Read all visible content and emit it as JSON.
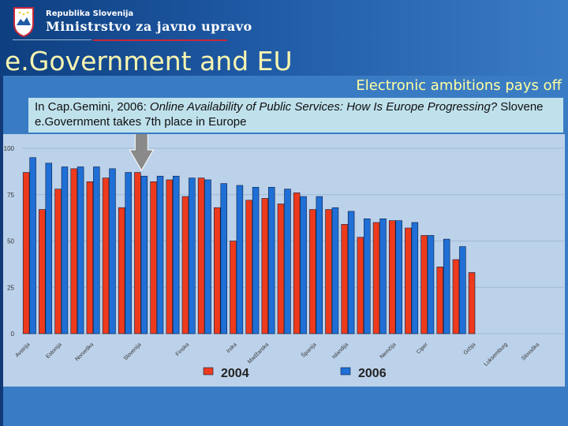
{
  "header": {
    "republika": "Republika Slovenija",
    "ministry": "Ministrstvo za javno upravo"
  },
  "slide": {
    "title": "e.Government and EU",
    "subtitle": "Electronic ambitions pays off",
    "caption_prefix": "In Cap.Gemini, 2006: ",
    "caption_italic": "Online Availability of Public Services: How Is Europe Progressing?",
    "caption_suffix": "  Slovene e.Government takes 7th place in Europe"
  },
  "colors": {
    "bar2004": "#ee3a1c",
    "bar2006": "#1f6fd6",
    "plot_bg": "#bcd2ea",
    "highlight_arrow": "#8a8a8a"
  },
  "chart_data": {
    "type": "bar",
    "ylim": [
      0,
      100
    ],
    "yticks": [
      0,
      25,
      50,
      75,
      100
    ],
    "categories": [
      "Avstrija",
      "",
      "Estonija",
      "",
      "Norveška",
      "",
      "",
      "Slovenija",
      "",
      "",
      "Finska",
      "",
      "",
      "Irska",
      "",
      "Madžarska",
      "",
      "",
      "Španija",
      "",
      "Islandija",
      "",
      "",
      "Nemčija",
      "",
      "Ciper",
      "",
      "",
      "Grčija",
      "",
      "Luksemburg",
      "",
      "Slovaška",
      ""
    ],
    "series": [
      {
        "name": "2004",
        "values": [
          87,
          67,
          78,
          89,
          82,
          84,
          68,
          87,
          82,
          83,
          74,
          84,
          68,
          50,
          72,
          73,
          70,
          76,
          67,
          67,
          59,
          52,
          60,
          61,
          57,
          53,
          36,
          40,
          33,
          null,
          null,
          null,
          null,
          null
        ]
      },
      {
        "name": "2006",
        "values": [
          95,
          92,
          90,
          90,
          90,
          89,
          87,
          85,
          85,
          85,
          84,
          83,
          81,
          80,
          79,
          79,
          78,
          74,
          74,
          68,
          66,
          62,
          62,
          61,
          60,
          53,
          51,
          47,
          null,
          null,
          null,
          null,
          null,
          null
        ]
      }
    ],
    "legend": [
      {
        "label": "2004",
        "color": "#ee3a1c"
      },
      {
        "label": "2006",
        "color": "#1f6fd6"
      }
    ],
    "annotation": {
      "type": "arrow",
      "target_index": 7
    }
  }
}
